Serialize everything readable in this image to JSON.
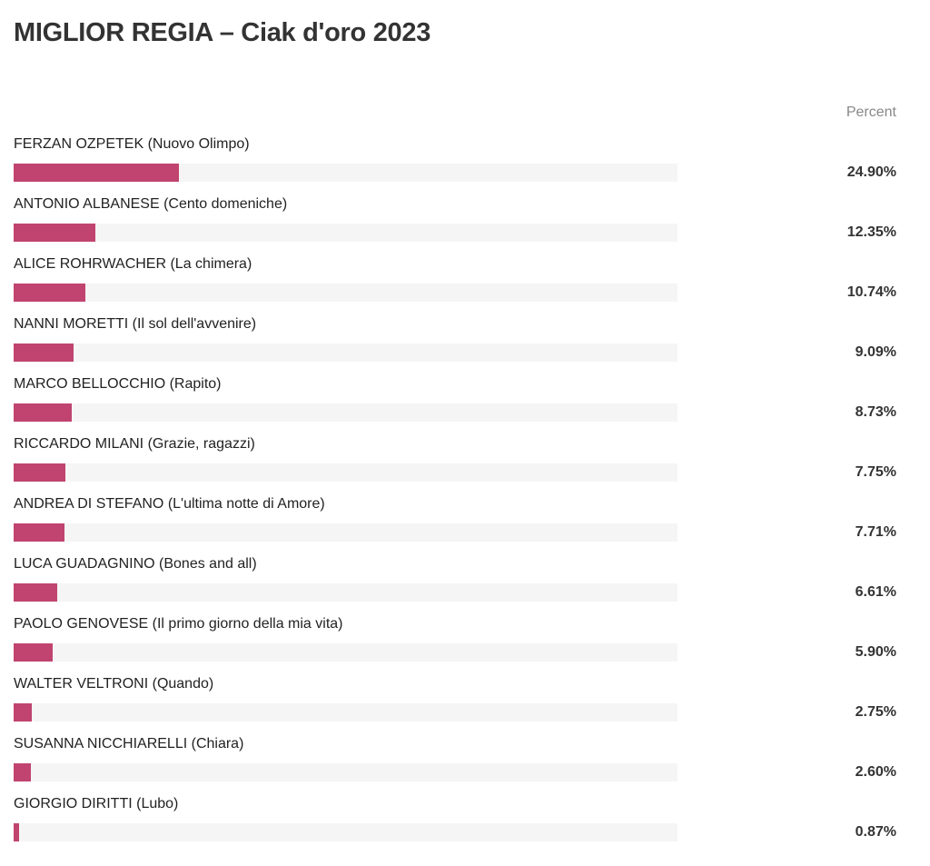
{
  "chart_data": {
    "type": "bar",
    "orientation": "horizontal",
    "title": "MIGLIOR REGIA – Ciak d'oro 2023",
    "value_header": "Percent",
    "bar_color": "#c0446f",
    "track_color": "#f5f5f5",
    "xlim": [
      0,
      100
    ],
    "categories": [
      "FERZAN OZPETEK (Nuovo Olimpo)",
      "ANTONIO ALBANESE (Cento domeniche)",
      "ALICE ROHRWACHER (La chimera)",
      "NANNI MORETTI (Il sol dell'avvenire)",
      "MARCO BELLOCCHIO (Rapito)",
      "RICCARDO MILANI (Grazie, ragazzi)",
      "ANDREA DI STEFANO (L'ultima notte di Amore)",
      "LUCA GUADAGNINO (Bones and all)",
      "PAOLO GENOVESE (Il primo giorno della mia vita)",
      "WALTER VELTRONI (Quando)",
      "SUSANNA NICCHIARELLI (Chiara)",
      "GIORGIO DIRITTI (Lubo)"
    ],
    "values": [
      24.9,
      12.35,
      10.74,
      9.09,
      8.73,
      7.75,
      7.71,
      6.61,
      5.9,
      2.75,
      2.6,
      0.87
    ],
    "value_labels": [
      "24.90%",
      "12.35%",
      "10.74%",
      "9.09%",
      "8.73%",
      "7.75%",
      "7.71%",
      "6.61%",
      "5.90%",
      "2.75%",
      "2.60%",
      "0.87%"
    ]
  }
}
